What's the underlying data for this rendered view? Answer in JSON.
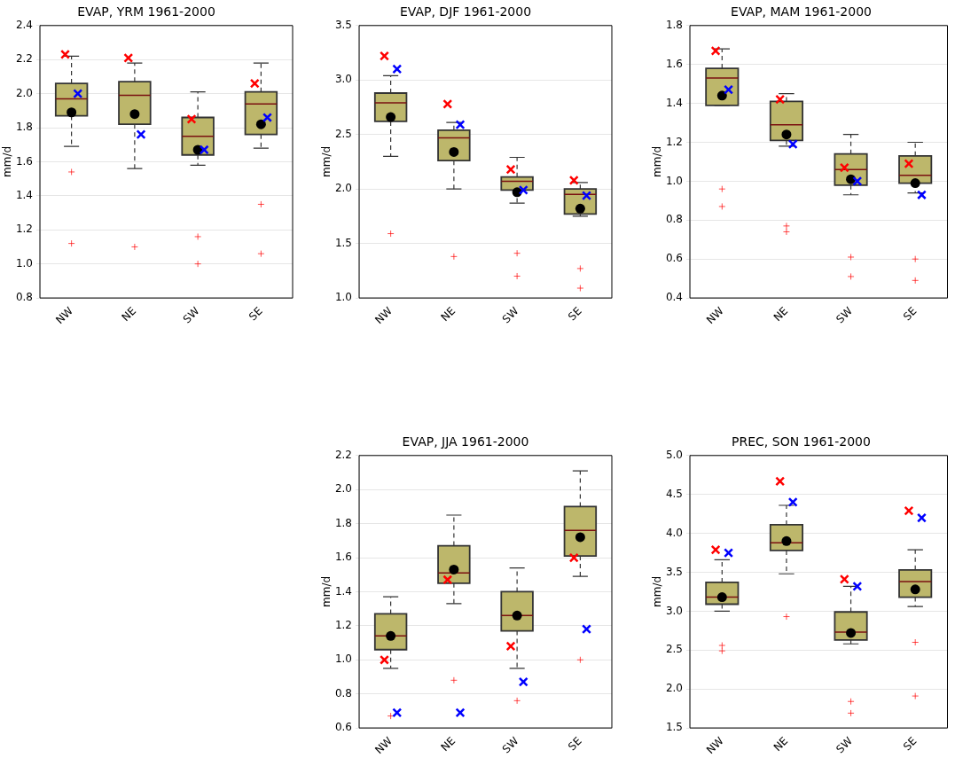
{
  "chart_data": [
    {
      "type": "box",
      "title": "EVAP, YRM 1961-2000",
      "ylabel": "mm/d",
      "categories": [
        "NW",
        "NE",
        "SW",
        "SE"
      ],
      "ylim": [
        0.8,
        2.4
      ],
      "yticks": [
        0.8,
        {
          "value": 1,
          "label": "1.0"
        },
        1.2,
        1.4,
        1.6,
        1.8,
        {
          "value": 2,
          "label": "2.0"
        },
        2.2,
        2.4
      ],
      "grid": "y",
      "series": [
        {
          "color": "#bdb76b",
          "boxes": [
            {
              "low": 1.69,
              "q1": 1.87,
              "median": 1.97,
              "q3": 2.06,
              "high": 2.22,
              "mean": 1.89,
              "outliers": [
                1.54,
                1.12
              ]
            },
            {
              "low": 1.56,
              "q1": 1.82,
              "median": 1.99,
              "q3": 2.07,
              "high": 2.18,
              "mean": 1.88,
              "outliers": [
                1.1
              ]
            },
            {
              "low": 1.58,
              "q1": 1.64,
              "median": 1.75,
              "q3": 1.86,
              "high": 2.01,
              "mean": 1.67,
              "outliers": [
                1.16,
                1.0
              ]
            },
            {
              "low": 1.68,
              "q1": 1.76,
              "median": 1.94,
              "q3": 2.01,
              "high": 2.18,
              "mean": 1.82,
              "outliers": [
                1.35,
                1.06
              ]
            }
          ]
        },
        {
          "type": "scatter",
          "color": "#ff0000",
          "marker": "cross",
          "x": [
            "NW",
            "NE",
            "SW",
            "SE"
          ],
          "values": [
            2.23,
            2.21,
            1.85,
            2.06
          ]
        },
        {
          "type": "scatter",
          "color": "#0000ff",
          "marker": "cross",
          "x": [
            "NW",
            "NE",
            "SW",
            "SE"
          ],
          "values": [
            2.0,
            1.76,
            1.67,
            1.86
          ]
        }
      ]
    },
    {
      "type": "box",
      "title": "EVAP, DJF 1961-2000",
      "ylabel": "mm/d",
      "categories": [
        "NW",
        "NE",
        "SW",
        "SE"
      ],
      "ylim": [
        1,
        3.5
      ],
      "yticks": [
        {
          "value": 1,
          "label": "1.0"
        },
        1.5,
        {
          "value": 2,
          "label": "2.0"
        },
        2.5,
        {
          "value": 3,
          "label": "3.0"
        },
        3.5
      ],
      "grid": "y",
      "series": [
        {
          "color": "#bdb76b",
          "boxes": [
            {
              "low": 2.3,
              "q1": 2.62,
              "median": 2.79,
              "q3": 2.88,
              "high": 3.04,
              "mean": 2.66,
              "outliers": [
                1.59
              ]
            },
            {
              "low": 2.0,
              "q1": 2.26,
              "median": 2.47,
              "q3": 2.54,
              "high": 2.61,
              "mean": 2.34,
              "outliers": [
                1.38
              ]
            },
            {
              "low": 1.87,
              "q1": 1.99,
              "median": 2.07,
              "q3": 2.11,
              "high": 2.29,
              "mean": 1.97,
              "outliers": [
                1.41,
                1.2
              ]
            },
            {
              "low": 1.75,
              "q1": 1.77,
              "median": 1.95,
              "q3": 2.0,
              "high": 2.06,
              "mean": 1.82,
              "outliers": [
                1.27,
                1.09
              ]
            }
          ]
        },
        {
          "type": "scatter",
          "color": "#ff0000",
          "marker": "cross",
          "x": [
            "NW",
            "NE",
            "SW",
            "SE"
          ],
          "values": [
            3.22,
            2.78,
            2.18,
            2.08
          ]
        },
        {
          "type": "scatter",
          "color": "#0000ff",
          "marker": "cross",
          "x": [
            "NW",
            "NE",
            "SW",
            "SE"
          ],
          "values": [
            3.1,
            2.59,
            1.99,
            1.94
          ]
        }
      ]
    },
    {
      "type": "box",
      "title": "EVAP, MAM 1961-2000",
      "ylabel": "mm/d",
      "categories": [
        "NW",
        "NE",
        "SW",
        "SE"
      ],
      "ylim": [
        0.4,
        1.8
      ],
      "yticks": [
        0.4,
        0.6,
        0.8,
        {
          "value": 1,
          "label": "1.0"
        },
        1.2,
        1.4,
        1.6,
        1.8
      ],
      "grid": "y",
      "series": [
        {
          "color": "#bdb76b",
          "boxes": [
            {
              "low": 1.39,
              "q1": 1.39,
              "median": 1.53,
              "q3": 1.58,
              "high": 1.68,
              "mean": 1.44,
              "outliers": [
                0.96,
                0.87
              ]
            },
            {
              "low": 1.18,
              "q1": 1.21,
              "median": 1.29,
              "q3": 1.41,
              "high": 1.45,
              "mean": 1.24,
              "outliers": [
                0.77,
                0.74
              ]
            },
            {
              "low": 0.93,
              "q1": 0.98,
              "median": 1.06,
              "q3": 1.14,
              "high": 1.24,
              "mean": 1.01,
              "outliers": [
                0.61,
                0.51
              ]
            },
            {
              "low": 0.94,
              "q1": 0.99,
              "median": 1.03,
              "q3": 1.13,
              "high": 1.2,
              "mean": 0.99,
              "outliers": [
                0.6,
                0.49
              ]
            }
          ]
        },
        {
          "type": "scatter",
          "color": "#ff0000",
          "marker": "cross",
          "x": [
            "NW",
            "NE",
            "SW",
            "SE"
          ],
          "values": [
            1.67,
            1.42,
            1.07,
            1.09
          ]
        },
        {
          "type": "scatter",
          "color": "#0000ff",
          "marker": "cross",
          "x": [
            "NW",
            "NE",
            "SW",
            "SE"
          ],
          "values": [
            1.47,
            1.19,
            1.0,
            0.93
          ]
        }
      ]
    },
    {
      "type": "box",
      "title": "EVAP, JJA 1961-2000",
      "ylabel": "mm/d",
      "categories": [
        "NW",
        "NE",
        "SW",
        "SE"
      ],
      "ylim": [
        0.6,
        2.2
      ],
      "yticks": [
        0.6,
        0.8,
        {
          "value": 1,
          "label": "1.0"
        },
        1.2,
        1.4,
        1.6,
        1.8,
        {
          "value": 2,
          "label": "2.0"
        },
        2.2
      ],
      "grid": "y",
      "series": [
        {
          "color": "#bdb76b",
          "boxes": [
            {
              "low": 0.95,
              "q1": 1.06,
              "median": 1.14,
              "q3": 1.27,
              "high": 1.37,
              "mean": 1.14,
              "outliers": [
                0.67
              ]
            },
            {
              "low": 1.33,
              "q1": 1.45,
              "median": 1.51,
              "q3": 1.67,
              "high": 1.85,
              "mean": 1.53,
              "outliers": [
                0.88
              ]
            },
            {
              "low": 0.95,
              "q1": 1.17,
              "median": 1.26,
              "q3": 1.4,
              "high": 1.54,
              "mean": 1.26,
              "outliers": [
                0.76
              ]
            },
            {
              "low": 1.49,
              "q1": 1.61,
              "median": 1.76,
              "q3": 1.9,
              "high": 2.11,
              "mean": 1.72,
              "outliers": [
                1.0
              ]
            }
          ]
        },
        {
          "type": "scatter",
          "color": "#ff0000",
          "marker": "cross",
          "x": [
            "NW",
            "NE",
            "SW",
            "SE"
          ],
          "values": [
            1.0,
            1.47,
            1.08,
            1.6
          ]
        },
        {
          "type": "scatter",
          "color": "#0000ff",
          "marker": "cross",
          "x": [
            "NW",
            "NE",
            "SW",
            "SE"
          ],
          "values": [
            0.69,
            0.69,
            0.87,
            1.18
          ]
        }
      ]
    },
    {
      "type": "box",
      "title": "PREC, SON 1961-2000",
      "ylabel": "mm/d",
      "categories": [
        "NW",
        "NE",
        "SW",
        "SE"
      ],
      "ylim": [
        1.5,
        5
      ],
      "yticks": [
        1.5,
        {
          "value": 2,
          "label": "2.0"
        },
        2.5,
        {
          "value": 3,
          "label": "3.0"
        },
        3.5,
        {
          "value": 4,
          "label": "4.0"
        },
        4.5,
        {
          "value": 5,
          "label": "5.0"
        }
      ],
      "grid": "y",
      "series": [
        {
          "color": "#bdb76b",
          "boxes": [
            {
              "low": 3.0,
              "q1": 3.09,
              "median": 3.18,
              "q3": 3.37,
              "high": 3.66,
              "mean": 3.18,
              "outliers": [
                2.56,
                2.49
              ]
            },
            {
              "low": 3.48,
              "q1": 3.78,
              "median": 3.88,
              "q3": 4.11,
              "high": 4.36,
              "mean": 3.9,
              "outliers": [
                2.93
              ]
            },
            {
              "low": 2.58,
              "q1": 2.63,
              "median": 2.73,
              "q3": 2.99,
              "high": 3.32,
              "mean": 2.72,
              "outliers": [
                1.84,
                1.69
              ]
            },
            {
              "low": 3.06,
              "q1": 3.18,
              "median": 3.38,
              "q3": 3.53,
              "high": 3.79,
              "mean": 3.28,
              "outliers": [
                2.6,
                1.91
              ]
            }
          ]
        },
        {
          "type": "scatter",
          "color": "#ff0000",
          "marker": "cross",
          "x": [
            "NW",
            "NE",
            "SW",
            "SE"
          ],
          "values": [
            3.79,
            4.67,
            3.41,
            4.29
          ]
        },
        {
          "type": "scatter",
          "color": "#0000ff",
          "marker": "cross",
          "x": [
            "NW",
            "NE",
            "SW",
            "SE"
          ],
          "values": [
            3.75,
            4.4,
            3.32,
            4.2
          ]
        }
      ]
    }
  ]
}
